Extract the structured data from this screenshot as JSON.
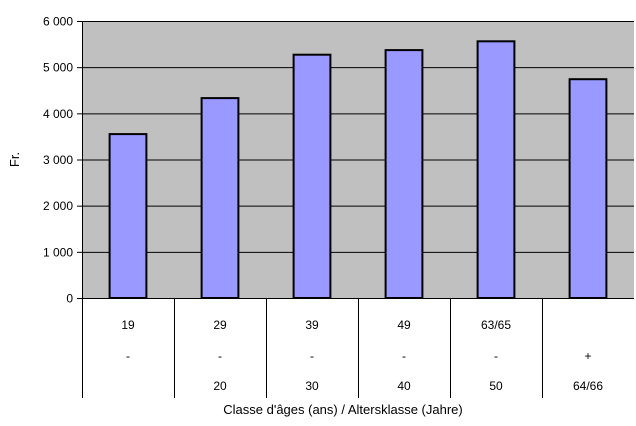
{
  "chart_data": {
    "type": "bar",
    "title": "",
    "xlabel": "Classe d'âges (ans) / Altersklasse (Jahre)",
    "ylabel": "Fr.",
    "ylim": [
      0,
      6000
    ],
    "yticks": [
      0,
      1000,
      2000,
      3000,
      4000,
      5000,
      6000
    ],
    "ytick_labels": [
      "0",
      "1 000",
      "2 000",
      "3 000",
      "4 000",
      "5 000",
      "6 000"
    ],
    "grid": true,
    "legend": "none",
    "categories": [
      [
        "19",
        "-",
        ""
      ],
      [
        "29",
        "-",
        "20"
      ],
      [
        "39",
        "-",
        "30"
      ],
      [
        "49",
        "-",
        "40"
      ],
      [
        "63/65",
        "-",
        "50"
      ],
      [
        "",
        "+",
        "64/66"
      ]
    ],
    "values": [
      3550,
      4330,
      5270,
      5370,
      5560,
      4740
    ],
    "colors": {
      "plot_background": "#c0c0c0",
      "bar_fill": "#9999ff",
      "bar_stroke": "#000000",
      "gridline": "#000000"
    }
  }
}
